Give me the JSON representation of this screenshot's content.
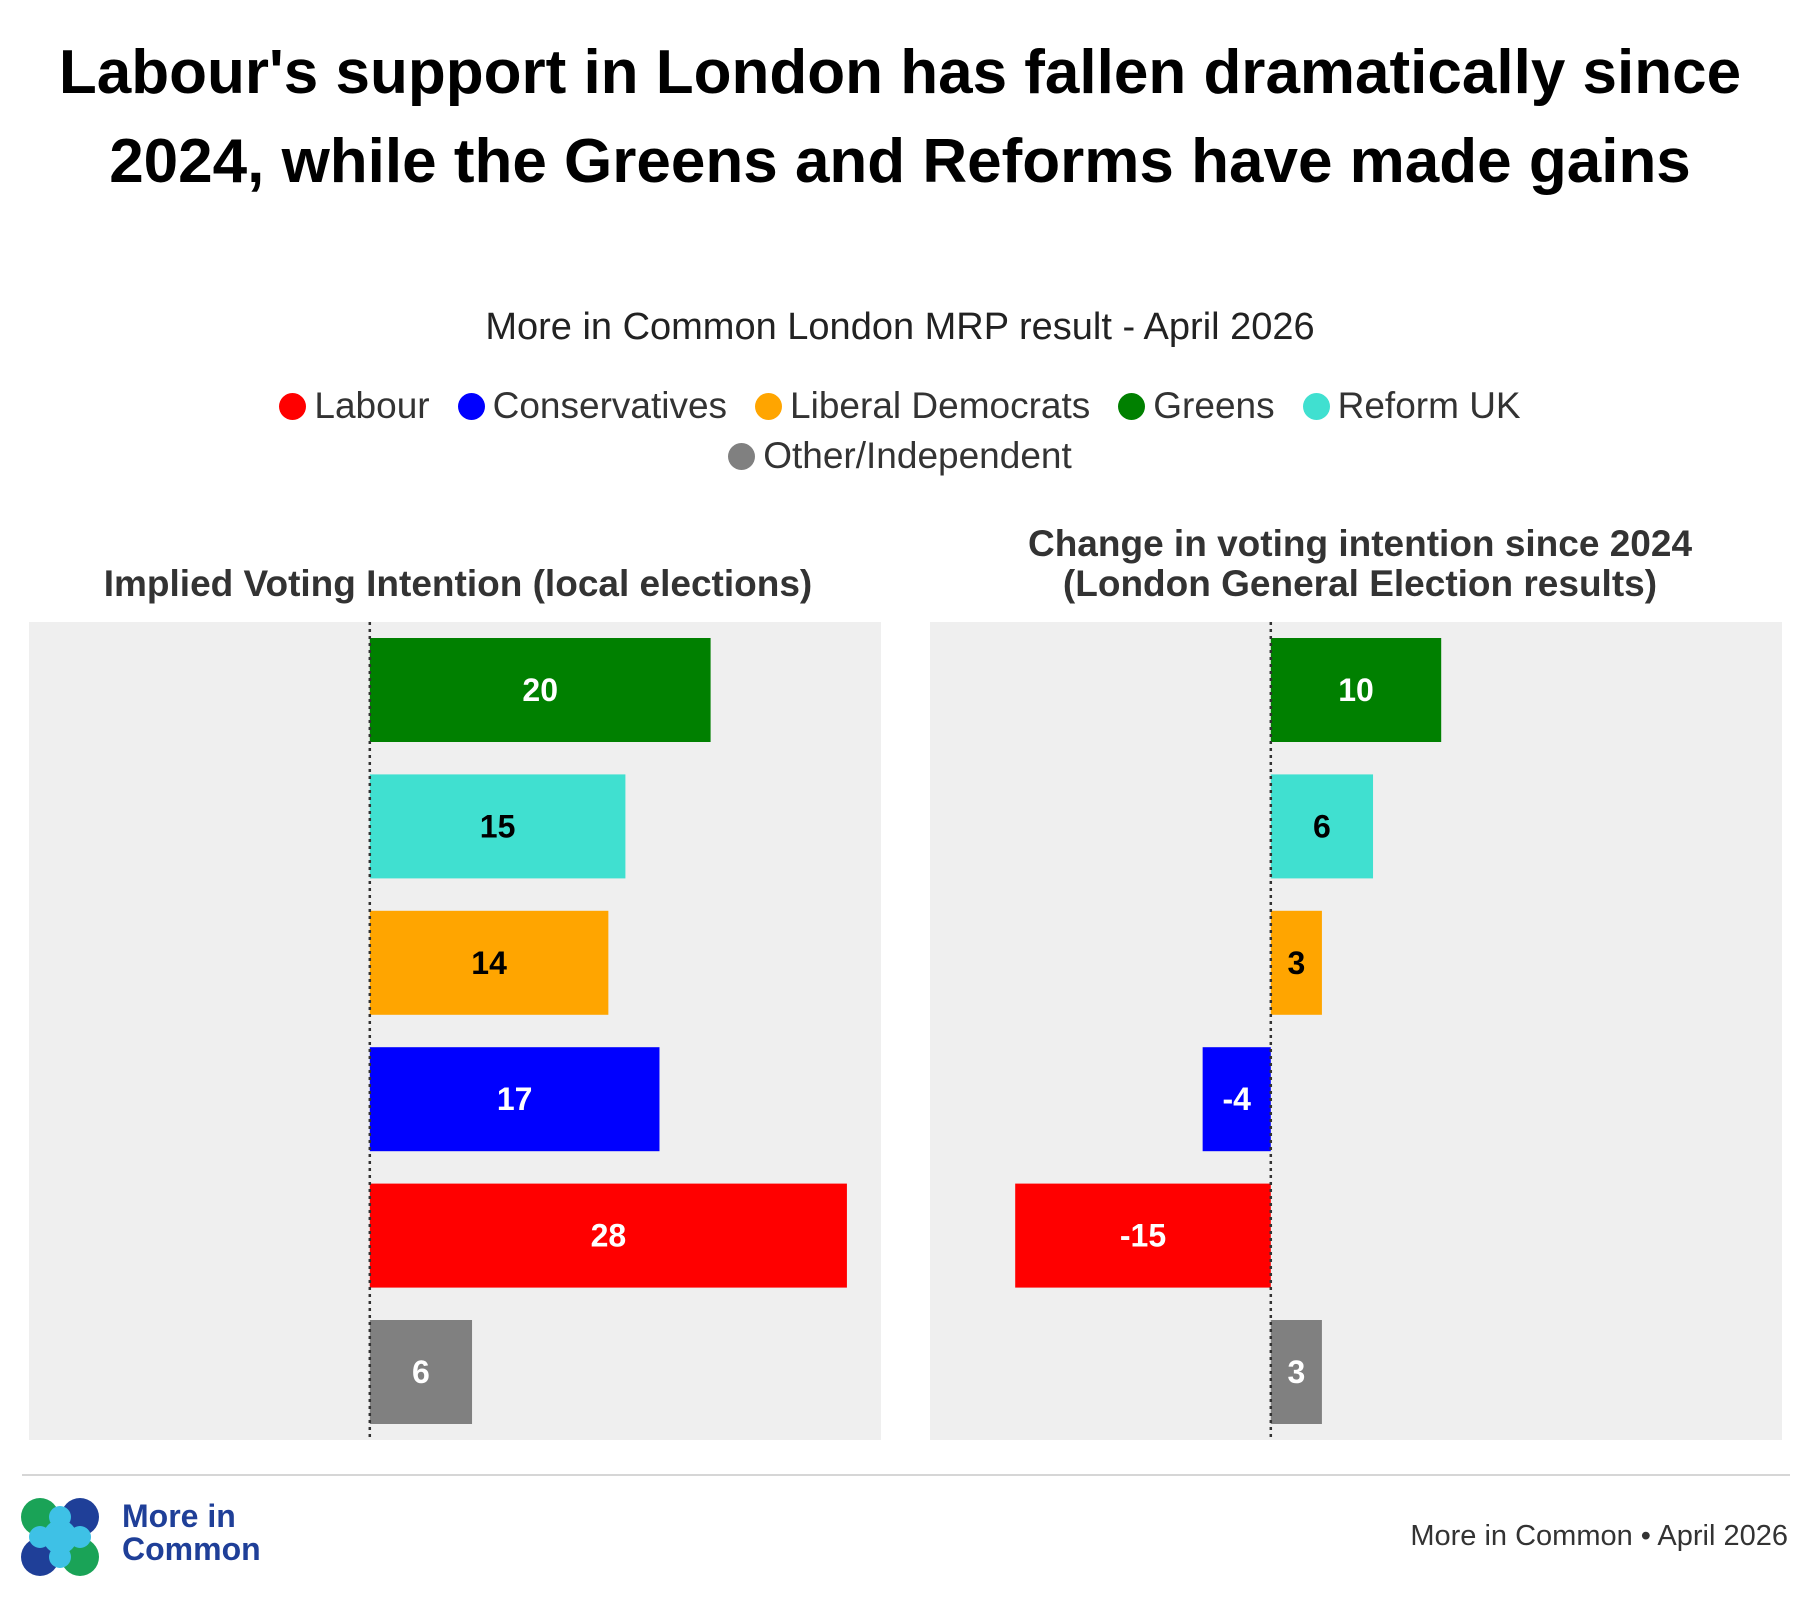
{
  "title": "Labour's support in London has fallen dramatically since 2024, while the Greens and Reforms have made gains",
  "subtitle": "More in Common London MRP result - April 2026",
  "legend": [
    {
      "label": "Labour",
      "color": "#ff0000"
    },
    {
      "label": "Conservatives",
      "color": "#0000ff"
    },
    {
      "label": "Liberal Democrats",
      "color": "#ffa500"
    },
    {
      "label": "Greens",
      "color": "#008000"
    },
    {
      "label": "Reform UK",
      "color": "#40e0d0"
    },
    {
      "label": "Other/Independent",
      "color": "#808080"
    }
  ],
  "chart_data": [
    {
      "type": "bar",
      "orientation": "horizontal",
      "title": "Implied Voting Intention (local elections)",
      "categories": [
        "Greens",
        "Reform UK",
        "Liberal Democrats",
        "Conservatives",
        "Labour",
        "Other/Independent"
      ],
      "values": [
        20,
        15,
        14,
        17,
        28,
        6
      ],
      "labels": [
        "20",
        "15",
        "14",
        "17",
        "28",
        "6"
      ],
      "colors": [
        "#008000",
        "#40e0d0",
        "#ffa500",
        "#0000ff",
        "#ff0000",
        "#808080"
      ],
      "label_colors": [
        "#ffffff",
        "#000000",
        "#000000",
        "#ffffff",
        "#ffffff",
        "#ffffff"
      ],
      "xlim": [
        -20,
        30
      ],
      "zero_line": "dotted",
      "grid": false
    },
    {
      "type": "bar",
      "orientation": "horizontal",
      "title": "Change in voting intention since 2024\n(London General Election results)",
      "categories": [
        "Greens",
        "Reform UK",
        "Liberal Democrats",
        "Conservatives",
        "Labour",
        "Other/Independent"
      ],
      "values": [
        10,
        6,
        3,
        -4,
        -15,
        3
      ],
      "labels": [
        "10",
        "6",
        "3",
        "-4",
        "-15",
        "3"
      ],
      "colors": [
        "#008000",
        "#40e0d0",
        "#ffa500",
        "#0000ff",
        "#ff0000",
        "#808080"
      ],
      "label_colors": [
        "#ffffff",
        "#000000",
        "#000000",
        "#ffffff",
        "#ffffff",
        "#ffffff"
      ],
      "xlim": [
        -20,
        30
      ],
      "zero_line": "dotted",
      "grid": false
    }
  ],
  "footer": {
    "brand_line1": "More in",
    "brand_line2": "Common",
    "source": "More in Common • April 2026"
  }
}
